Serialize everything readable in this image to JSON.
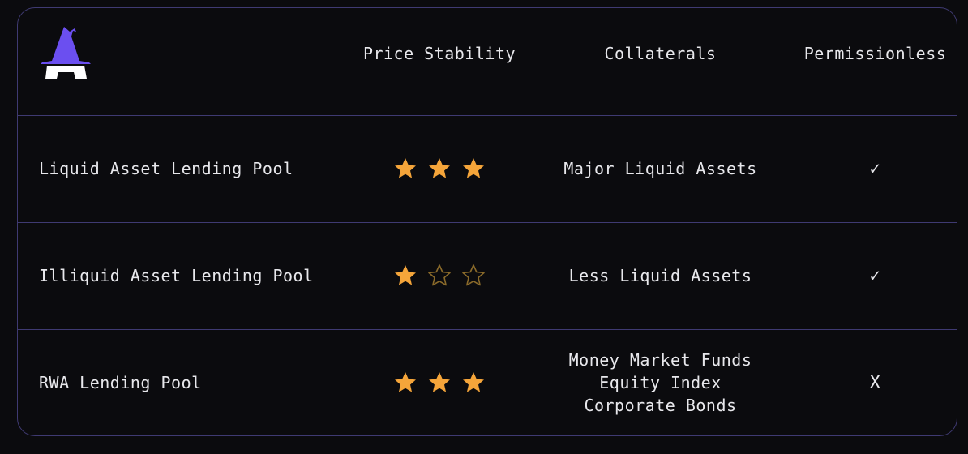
{
  "logo": {
    "name": "wizard-hat-logo",
    "hat_color": "#6b4ff0"
  },
  "columns": [
    "Price Stability",
    "Collaterals",
    "Permissionless"
  ],
  "star_color": "#f5a53a",
  "rows": [
    {
      "pool": "Liquid Asset Lending Pool",
      "stars": 3,
      "max_stars": 3,
      "collaterals": [
        "Major Liquid Assets"
      ],
      "permissionless": "✓"
    },
    {
      "pool": "Illiquid Asset Lending Pool",
      "stars": 1,
      "max_stars": 3,
      "collaterals": [
        "Less Liquid Assets"
      ],
      "permissionless": "✓"
    },
    {
      "pool": "RWA Lending Pool",
      "stars": 3,
      "max_stars": 3,
      "collaterals": [
        "Money Market Funds",
        "Equity Index",
        "Corporate Bonds"
      ],
      "permissionless": "X"
    }
  ]
}
